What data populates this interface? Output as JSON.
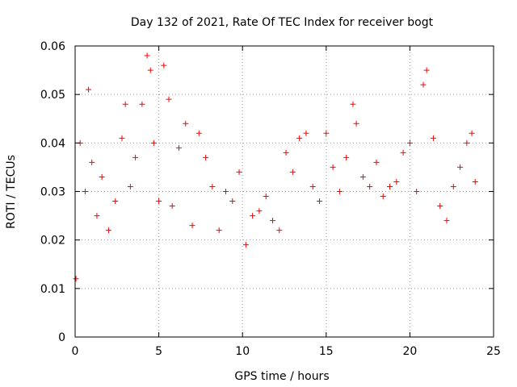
{
  "chart_data": {
    "type": "scatter",
    "title": "Day 132 of 2021, Rate Of TEC Index for receiver bogt",
    "xlabel": "GPS time / hours",
    "ylabel": "ROTI / TECUs",
    "xlim": [
      0,
      25
    ],
    "ylim": [
      0,
      0.06
    ],
    "xticks": [
      0,
      5,
      10,
      15,
      20,
      25
    ],
    "xtick_labels": [
      "0",
      "5",
      "10",
      "15",
      "20",
      "25"
    ],
    "yticks": [
      0,
      0.01,
      0.02,
      0.03,
      0.04,
      0.05,
      0.06
    ],
    "ytick_labels": [
      "0",
      "0.01",
      "0.02",
      "0.03",
      "0.04",
      "0.05",
      "0.06"
    ],
    "grid": true,
    "marker": "+",
    "marker_color": "#ff0000",
    "series": [
      {
        "name": "ROTI",
        "x": [
          0.05,
          0.3,
          0.6,
          0.8,
          1.0,
          1.3,
          1.6,
          2.0,
          2.4,
          2.8,
          3.0,
          3.3,
          3.6,
          4.0,
          4.3,
          4.5,
          4.7,
          5.0,
          5.3,
          5.6,
          5.8,
          6.2,
          6.6,
          7.0,
          7.4,
          7.8,
          8.2,
          8.6,
          9.0,
          9.4,
          9.8,
          10.2,
          10.6,
          11.0,
          11.4,
          11.8,
          12.2,
          12.6,
          13.0,
          13.4,
          13.8,
          14.2,
          14.6,
          15.0,
          15.4,
          15.8,
          16.2,
          16.6,
          16.8,
          17.2,
          17.6,
          18.0,
          18.4,
          18.8,
          19.2,
          19.6,
          20.0,
          20.4,
          20.8,
          21.0,
          21.4,
          21.8,
          22.2,
          22.6,
          23.0,
          23.4,
          23.7,
          23.9
        ],
        "y": [
          0.012,
          0.04,
          0.03,
          0.051,
          0.036,
          0.025,
          0.033,
          0.022,
          0.028,
          0.041,
          0.048,
          0.031,
          0.037,
          0.048,
          0.058,
          0.055,
          0.04,
          0.028,
          0.056,
          0.049,
          0.027,
          0.039,
          0.044,
          0.023,
          0.042,
          0.037,
          0.031,
          0.022,
          0.03,
          0.028,
          0.034,
          0.019,
          0.025,
          0.026,
          0.029,
          0.024,
          0.022,
          0.038,
          0.034,
          0.041,
          0.042,
          0.031,
          0.028,
          0.042,
          0.035,
          0.03,
          0.037,
          0.048,
          0.044,
          0.033,
          0.031,
          0.036,
          0.029,
          0.031,
          0.032,
          0.038,
          0.04,
          0.03,
          0.052,
          0.055,
          0.041,
          0.027,
          0.024,
          0.031,
          0.035,
          0.04,
          0.042,
          0.032
        ]
      }
    ]
  }
}
